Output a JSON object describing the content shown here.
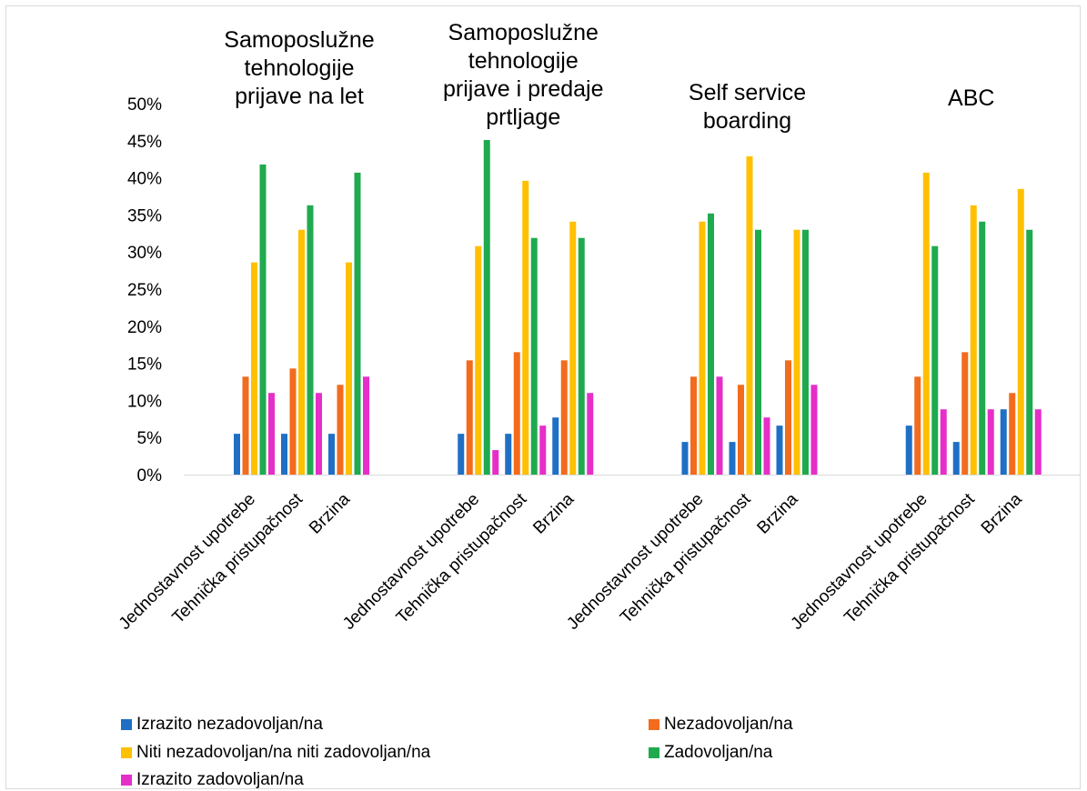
{
  "chart_data": {
    "type": "bar",
    "y_axis": {
      "ticks": [
        "0%",
        "5%",
        "10%",
        "15%",
        "20%",
        "25%",
        "30%",
        "35%",
        "40%",
        "45%",
        "50%"
      ],
      "ylim": [
        0,
        50
      ]
    },
    "grid": false,
    "legend_position": "bottom",
    "groups": [
      {
        "title": "Samoposlužne tehnologije prijave na let",
        "title_lines": [
          "Samoposlužne",
          "tehnologije",
          "prijave na let"
        ],
        "categories": [
          "Jednostavnost upotrebe",
          "Tehnička pristupačnost",
          "Brzina"
        ]
      },
      {
        "title": "Samoposlužne tehnologije prijave i predaje prtljage",
        "title_lines": [
          "Samoposlužne",
          "tehnologije",
          "prijave i predaje",
          "prtljage"
        ],
        "categories": [
          "Jednostavnost upotrebe",
          "Tehnička pristupačnost",
          "Brzina"
        ]
      },
      {
        "title": "Self service boarding",
        "title_lines": [
          "Self service",
          "boarding"
        ],
        "categories": [
          "Jednostavnost upotrebe",
          "Tehnička pristupačnost",
          "Brzina"
        ]
      },
      {
        "title": "ABC",
        "title_lines": [
          "ABC"
        ],
        "categories": [
          "Jednostavnost upotrebe",
          "Tehnička pristupačnost",
          "Brzina"
        ]
      }
    ],
    "series": [
      {
        "name": "Izrazito nezadovoljan/na",
        "color": "#1f6fc4",
        "values": [
          [
            5.5,
            5.5,
            5.5
          ],
          [
            5.5,
            5.5,
            7.7
          ],
          [
            4.4,
            4.4,
            6.6
          ],
          [
            6.6,
            4.4,
            8.8
          ]
        ]
      },
      {
        "name": "Nezadovoljan/na",
        "color": "#f36b1c",
        "values": [
          [
            13.2,
            14.3,
            12.1
          ],
          [
            15.4,
            16.5,
            15.4
          ],
          [
            13.2,
            12.1,
            15.4
          ],
          [
            13.2,
            16.5,
            11.0
          ]
        ]
      },
      {
        "name": "Niti nezadovoljan/na niti zadovoljan/na",
        "color": "#ffc000",
        "values": [
          [
            28.6,
            33.0,
            28.6
          ],
          [
            30.8,
            39.6,
            34.1
          ],
          [
            34.1,
            42.9,
            33.0
          ],
          [
            40.7,
            36.3,
            38.5
          ]
        ]
      },
      {
        "name": "Zadovoljan/na",
        "color": "#1faa4f",
        "values": [
          [
            41.8,
            36.3,
            40.7
          ],
          [
            45.1,
            31.9,
            31.9
          ],
          [
            35.2,
            33.0,
            33.0
          ],
          [
            30.8,
            34.1,
            33.0
          ]
        ]
      },
      {
        "name": "Izrazito zadovoljan/na",
        "color": "#e62ec8",
        "values": [
          [
            11.0,
            11.0,
            13.2
          ],
          [
            3.3,
            6.6,
            11.0
          ],
          [
            13.2,
            7.7,
            12.1
          ],
          [
            8.8,
            8.8,
            8.8
          ]
        ]
      }
    ]
  }
}
